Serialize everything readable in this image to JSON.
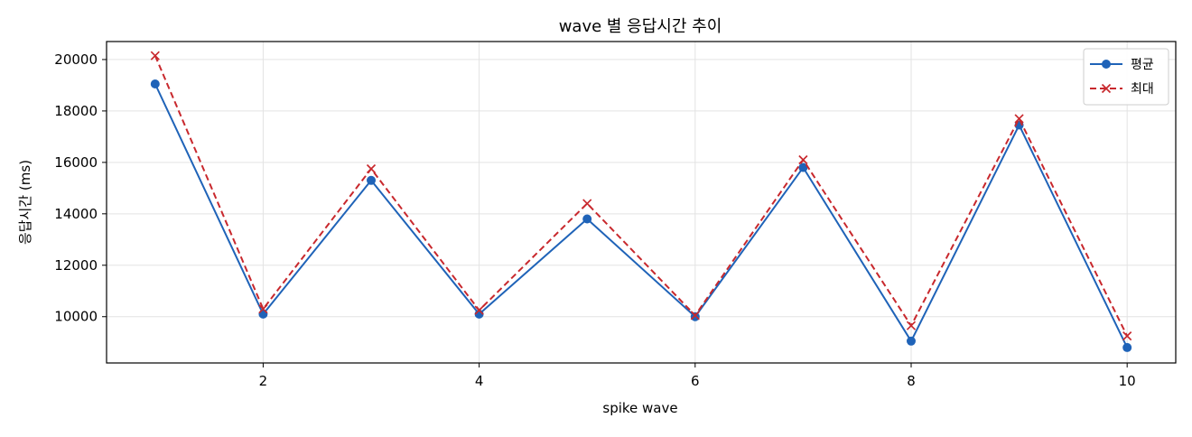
{
  "chart_data": {
    "type": "line",
    "title": "wave 별 응답시간 추이",
    "xlabel": "spike wave",
    "ylabel": "응답시간 (ms)",
    "x": [
      1,
      2,
      3,
      4,
      5,
      6,
      7,
      8,
      9,
      10
    ],
    "xlim": [
      0.55,
      10.45
    ],
    "ylim": [
      8200,
      20700
    ],
    "xticks": [
      2,
      4,
      6,
      8,
      10
    ],
    "yticks": [
      10000,
      12000,
      14000,
      16000,
      18000,
      20000
    ],
    "grid": true,
    "legend_position": "top-right",
    "series": [
      {
        "name": "평균",
        "values": [
          19050,
          10100,
          15300,
          10100,
          13800,
          10000,
          15800,
          9050,
          17450,
          8800
        ],
        "color": "#1f63b8",
        "line_style": "solid",
        "marker": "circle"
      },
      {
        "name": "최대",
        "values": [
          20150,
          10300,
          15750,
          10250,
          14400,
          10050,
          16100,
          9650,
          17700,
          9250
        ],
        "color": "#c8282d",
        "line_style": "dashed",
        "marker": "x"
      }
    ]
  }
}
